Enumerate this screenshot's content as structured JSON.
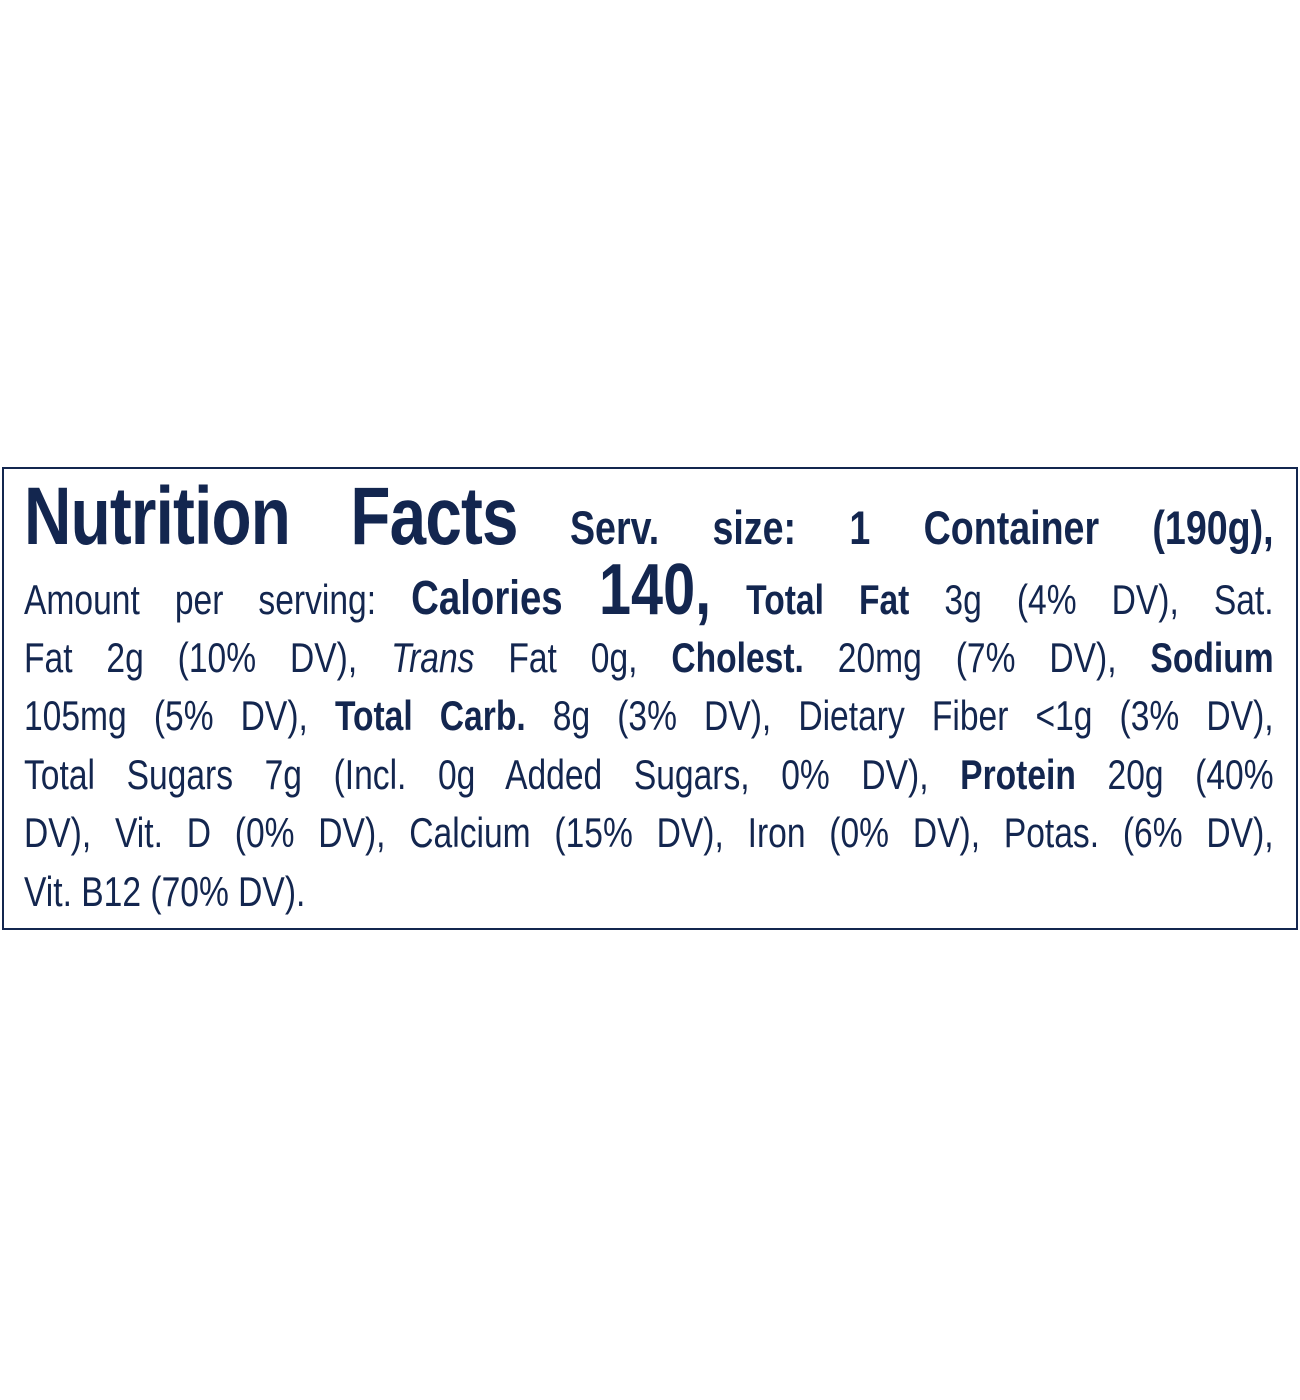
{
  "label": {
    "title": "Nutrition Facts",
    "serving_size": "Serv. size: 1 Container (190g),",
    "text_color": "#13264f",
    "lines": [
      {
        "segments": [
          {
            "text": "Amount per serving: "
          },
          {
            "text": "Calories "
          },
          {
            "text": "140,"
          },
          {
            "text": " Total Fat"
          },
          {
            "text": " 3g (4% DV), Sat."
          }
        ]
      },
      {
        "segments": [
          {
            "text": "Fat 2g (10% DV), "
          },
          {
            "text": "Trans"
          },
          {
            "text": " Fat 0g, "
          },
          {
            "text": "Cholest."
          },
          {
            "text": " 20mg (7% DV), "
          },
          {
            "text": "Sodium"
          }
        ]
      },
      {
        "segments": [
          {
            "text": "105mg (5% DV), "
          },
          {
            "text": "Total Carb."
          },
          {
            "text": " 8g (3% DV), Dietary Fiber <1g (3% DV),"
          }
        ]
      },
      {
        "segments": [
          {
            "text": "Total Sugars 7g (Incl. 0g Added Sugars, 0% DV), "
          },
          {
            "text": "Protein"
          },
          {
            "text": " 20g (40%"
          }
        ]
      },
      {
        "segments": [
          {
            "text": "DV), Vit. D (0% DV), Calcium (15% DV), Iron (0% DV), Potas. (6% DV),"
          }
        ]
      },
      {
        "segments": [
          {
            "text": "Vit. B12 (70% DV)."
          }
        ]
      }
    ]
  }
}
